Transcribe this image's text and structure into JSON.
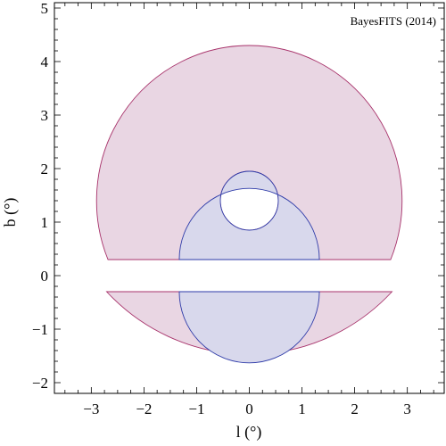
{
  "chart_data": {
    "type": "area",
    "title": "",
    "annotation": "BayesFITS (2014)",
    "xlabel": "l (°)",
    "ylabel": "b (°)",
    "xlim": [
      -3.7,
      3.7
    ],
    "ylim": [
      -2.2,
      5.1
    ],
    "x_ticks": [
      -3,
      -2,
      -1,
      0,
      1,
      2,
      3
    ],
    "x_tick_labels": [
      "−3",
      "−2",
      "−1",
      "0",
      "1",
      "2",
      "3"
    ],
    "y_ticks": [
      -2,
      -1,
      0,
      1,
      2,
      3,
      4,
      5
    ],
    "y_tick_labels": [
      "−2",
      "−1",
      "0",
      "1",
      "2",
      "3",
      "4",
      "5"
    ],
    "grid": false,
    "colors": {
      "outer_fill": "#e9d6e3",
      "outer_stroke": "#a8336b",
      "inner_fill": "#d8d8ec",
      "inner_stroke": "#2d3aa8"
    },
    "regions": [
      {
        "id": "outer-upper",
        "kind": "annular-sector",
        "center": [
          0,
          1.4
        ],
        "outer_radius": 2.9,
        "inner_radius": 0.55,
        "y_min": 0.3
      },
      {
        "id": "outer-lower",
        "kind": "disk-segment",
        "center": [
          0,
          2.25
        ],
        "radius": 3.72,
        "y_max": -0.3
      },
      {
        "id": "inner-upper",
        "kind": "annular-sector",
        "center": [
          0,
          0.3
        ],
        "outer_radius": 1.33,
        "hole_center": [
          0,
          1.4
        ],
        "hole_radius": 0.55,
        "y_min": 0.3
      },
      {
        "id": "inner-lower",
        "kind": "disk-segment",
        "center": [
          0,
          -0.3
        ],
        "radius": 1.33,
        "y_max": -0.3
      }
    ]
  }
}
